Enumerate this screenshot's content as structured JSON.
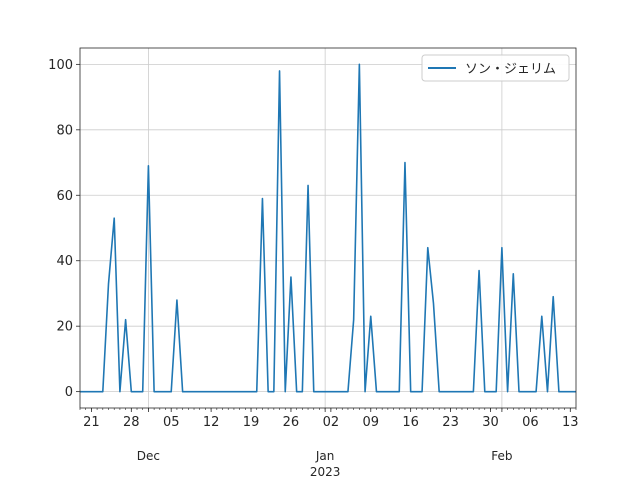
{
  "chart_data": {
    "type": "line",
    "title": "",
    "xlabel": "",
    "ylabel": "",
    "grid": true,
    "legend_position": "top-right",
    "x_range": [
      "2022-11-19",
      "2023-02-14"
    ],
    "ylim": [
      -5,
      105
    ],
    "y_ticks": [
      0,
      20,
      40,
      60,
      80,
      100
    ],
    "x_ticks": [
      {
        "date": "2022-11-21",
        "label": "21"
      },
      {
        "date": "2022-11-28",
        "label": "28"
      },
      {
        "date": "2022-12-05",
        "label": "05"
      },
      {
        "date": "2022-12-12",
        "label": "12"
      },
      {
        "date": "2022-12-19",
        "label": "19"
      },
      {
        "date": "2022-12-26",
        "label": "26"
      },
      {
        "date": "2023-01-02",
        "label": "02"
      },
      {
        "date": "2023-01-09",
        "label": "09"
      },
      {
        "date": "2023-01-16",
        "label": "16"
      },
      {
        "date": "2023-01-23",
        "label": "23"
      },
      {
        "date": "2023-01-30",
        "label": "30"
      },
      {
        "date": "2023-02-06",
        "label": "06"
      },
      {
        "date": "2023-02-13",
        "label": "13"
      }
    ],
    "month_labels": [
      {
        "date": "2022-12-01",
        "label": "Dec",
        "year": ""
      },
      {
        "date": "2023-01-01",
        "label": "Jan",
        "year": "2023"
      },
      {
        "date": "2023-02-01",
        "label": "Feb",
        "year": ""
      }
    ],
    "series": [
      {
        "name": "ソン・ジェリム",
        "color": "#1f77b4",
        "points": [
          [
            "2022-11-19",
            0
          ],
          [
            "2022-11-23",
            0
          ],
          [
            "2022-11-24",
            33
          ],
          [
            "2022-11-25",
            53
          ],
          [
            "2022-11-26",
            0
          ],
          [
            "2022-11-27",
            22
          ],
          [
            "2022-11-28",
            0
          ],
          [
            "2022-11-30",
            0
          ],
          [
            "2022-12-01",
            69
          ],
          [
            "2022-12-02",
            0
          ],
          [
            "2022-12-05",
            0
          ],
          [
            "2022-12-06",
            28
          ],
          [
            "2022-12-07",
            0
          ],
          [
            "2022-12-20",
            0
          ],
          [
            "2022-12-21",
            59
          ],
          [
            "2022-12-22",
            0
          ],
          [
            "2022-12-23",
            0
          ],
          [
            "2022-12-24",
            98
          ],
          [
            "2022-12-25",
            0
          ],
          [
            "2022-12-26",
            35
          ],
          [
            "2022-12-27",
            0
          ],
          [
            "2022-12-28",
            0
          ],
          [
            "2022-12-29",
            63
          ],
          [
            "2022-12-30",
            0
          ],
          [
            "2023-01-05",
            0
          ],
          [
            "2023-01-06",
            22
          ],
          [
            "2023-01-07",
            100
          ],
          [
            "2023-01-08",
            0
          ],
          [
            "2023-01-09",
            23
          ],
          [
            "2023-01-10",
            0
          ],
          [
            "2023-01-14",
            0
          ],
          [
            "2023-01-15",
            70
          ],
          [
            "2023-01-16",
            0
          ],
          [
            "2023-01-18",
            0
          ],
          [
            "2023-01-19",
            44
          ],
          [
            "2023-01-20",
            27
          ],
          [
            "2023-01-21",
            0
          ],
          [
            "2023-01-27",
            0
          ],
          [
            "2023-01-28",
            37
          ],
          [
            "2023-01-29",
            0
          ],
          [
            "2023-01-31",
            0
          ],
          [
            "2023-02-01",
            44
          ],
          [
            "2023-02-02",
            0
          ],
          [
            "2023-02-03",
            36
          ],
          [
            "2023-02-04",
            0
          ],
          [
            "2023-02-07",
            0
          ],
          [
            "2023-02-08",
            23
          ],
          [
            "2023-02-09",
            0
          ],
          [
            "2023-02-10",
            29
          ],
          [
            "2023-02-11",
            0
          ],
          [
            "2023-02-14",
            0
          ]
        ]
      }
    ]
  }
}
